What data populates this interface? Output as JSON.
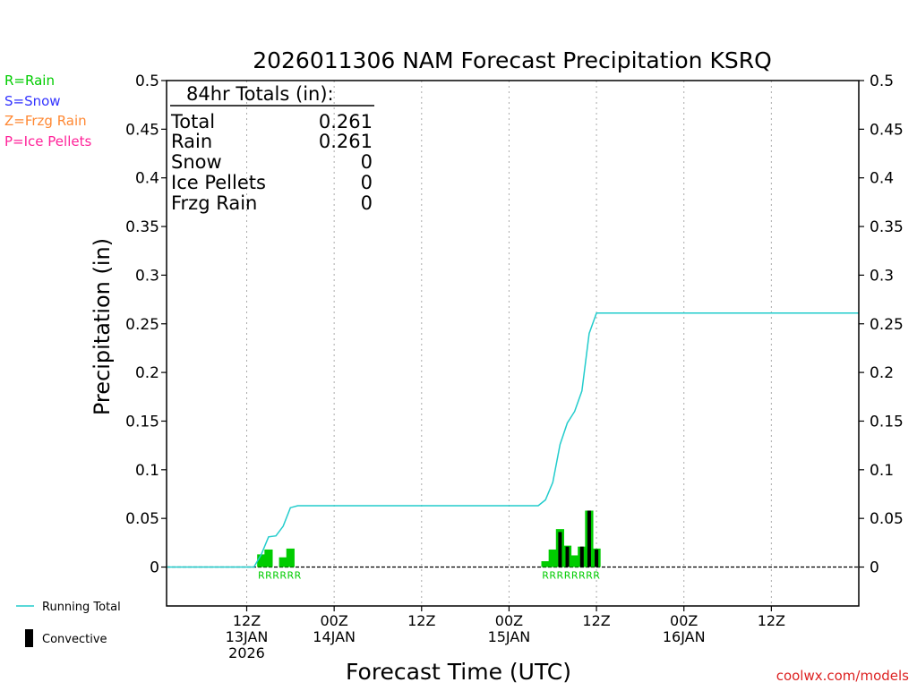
{
  "page_title": "2026011306 NAM Forecast Precipitation KSRQ",
  "legend": {
    "rain": "R=Rain",
    "snow": "S=Snow",
    "frzg": "Z=Frzg Rain",
    "ice": "P=Ice Pellets",
    "running_total": "Running Total",
    "convective": "Convective"
  },
  "totals": {
    "header": "84hr Totals (in):",
    "rows": [
      {
        "label": "Total",
        "value": "0.261"
      },
      {
        "label": "Rain",
        "value": "0.261"
      },
      {
        "label": "Snow",
        "value": "0"
      },
      {
        "label": "Ice Pellets",
        "value": "0"
      },
      {
        "label": "Frzg Rain",
        "value": "0"
      }
    ]
  },
  "credit": "coolwx.com/models",
  "colors": {
    "rain": "#00cc00",
    "snow": "#3333ff",
    "frzg": "#ff8833",
    "ice": "#ff2299",
    "running_total": "#22cccc",
    "convective": "#000000",
    "credit": "#dd2222"
  },
  "chart_data": {
    "type": "bar",
    "title": "2026011306 NAM Forecast Precipitation KSRQ",
    "xlabel": "Forecast Time (UTC)",
    "ylabel": "Precipitation (in)",
    "ylim": [
      -0.04,
      0.5
    ],
    "xlim_hours": [
      -5,
      90
    ],
    "yticks": [
      0,
      0.05,
      0.1,
      0.15,
      0.2,
      0.25,
      0.3,
      0.35,
      0.4,
      0.45,
      0.5
    ],
    "ytick_labels": [
      "0",
      "0.05",
      "0.1",
      "0.15",
      "0.2",
      "0.25",
      "0.3",
      "0.35",
      "0.4",
      "0.45",
      "0.5"
    ],
    "xticks": [
      {
        "hour": 6,
        "lines": [
          "12Z",
          "13JAN",
          "2026"
        ]
      },
      {
        "hour": 18,
        "lines": [
          "00Z",
          "14JAN"
        ]
      },
      {
        "hour": 30,
        "lines": [
          "12Z"
        ]
      },
      {
        "hour": 42,
        "lines": [
          "00Z",
          "15JAN"
        ]
      },
      {
        "hour": 54,
        "lines": [
          "12Z"
        ]
      },
      {
        "hour": 66,
        "lines": [
          "00Z",
          "16JAN"
        ]
      },
      {
        "hour": 78,
        "lines": [
          "12Z"
        ]
      }
    ],
    "grid": "vertical-dotted",
    "bars": [
      {
        "hour": 8,
        "total": 0.013,
        "convective": 0.0
      },
      {
        "hour": 9,
        "total": 0.018,
        "convective": 0.0
      },
      {
        "hour": 11,
        "total": 0.01,
        "convective": 0.0
      },
      {
        "hour": 12,
        "total": 0.019,
        "convective": 0.0
      },
      {
        "hour": 47,
        "total": 0.006,
        "convective": 0.0
      },
      {
        "hour": 48,
        "total": 0.018,
        "convective": 0.0
      },
      {
        "hour": 49,
        "total": 0.039,
        "convective": 0.036
      },
      {
        "hour": 50,
        "total": 0.022,
        "convective": 0.021
      },
      {
        "hour": 51,
        "total": 0.012,
        "convective": 0.0
      },
      {
        "hour": 52,
        "total": 0.021,
        "convective": 0.021
      },
      {
        "hour": 53,
        "total": 0.058,
        "convective": 0.058
      },
      {
        "hour": 54,
        "total": 0.019,
        "convective": 0.018
      }
    ],
    "precip_type_markers": [
      {
        "hour": 8,
        "code": "R"
      },
      {
        "hour": 9,
        "code": "R"
      },
      {
        "hour": 10,
        "code": "R"
      },
      {
        "hour": 11,
        "code": "R"
      },
      {
        "hour": 12,
        "code": "R"
      },
      {
        "hour": 13,
        "code": "R"
      },
      {
        "hour": 47,
        "code": "R"
      },
      {
        "hour": 48,
        "code": "R"
      },
      {
        "hour": 49,
        "code": "R"
      },
      {
        "hour": 50,
        "code": "R"
      },
      {
        "hour": 51,
        "code": "R"
      },
      {
        "hour": 52,
        "code": "R"
      },
      {
        "hour": 53,
        "code": "R"
      },
      {
        "hour": 54,
        "code": "R"
      }
    ],
    "running_total": {
      "x": [
        -5,
        7,
        8,
        9,
        10,
        11,
        12,
        13,
        14,
        46,
        47,
        48,
        49,
        50,
        51,
        52,
        53,
        54,
        90
      ],
      "y": [
        0,
        0,
        0.013,
        0.031,
        0.032,
        0.042,
        0.061,
        0.063,
        0.063,
        0.063,
        0.069,
        0.087,
        0.126,
        0.148,
        0.16,
        0.181,
        0.24,
        0.261,
        0.261
      ]
    }
  }
}
